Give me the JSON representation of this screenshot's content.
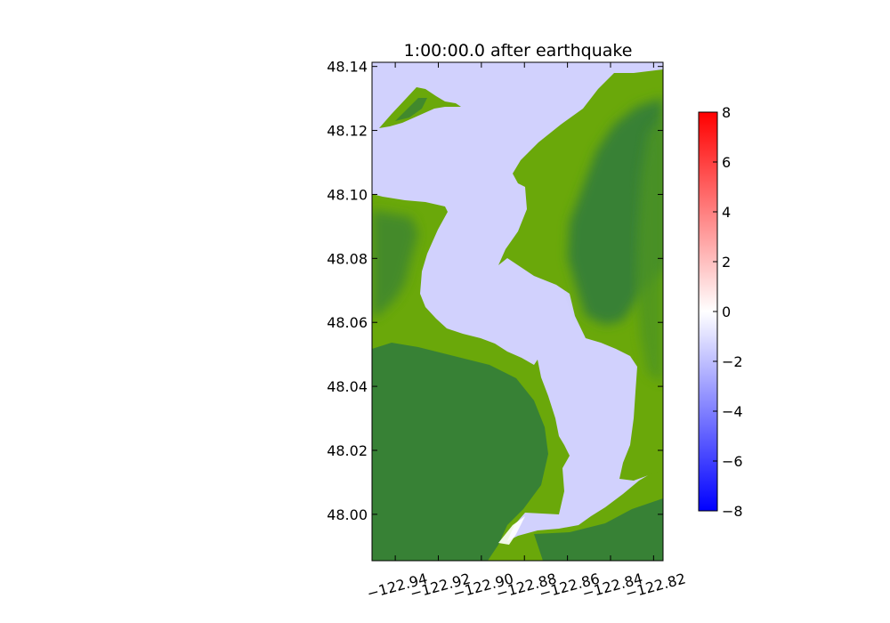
{
  "chart_data": {
    "type": "heatmap",
    "title": "1:00:00.0 after earthquake",
    "xlabel": "",
    "ylabel": "",
    "xlim": [
      -122.9508,
      -122.8156
    ],
    "ylim": [
      47.9855,
      48.1413
    ],
    "x_ticks": [
      -122.94,
      -122.92,
      -122.9,
      -122.88,
      -122.86,
      -122.84,
      -122.82
    ],
    "x_tick_labels": [
      "−122.94",
      "−122.92",
      "−122.90",
      "−122.88",
      "−122.86",
      "−122.84",
      "−122.82"
    ],
    "y_ticks": [
      48.0,
      48.02,
      48.04,
      48.06,
      48.08,
      48.1,
      48.12,
      48.14
    ],
    "y_tick_labels": [
      "48.00",
      "48.02",
      "48.04",
      "48.06",
      "48.08",
      "48.10",
      "48.12",
      "48.14"
    ],
    "grid": false,
    "field": "surface elevation",
    "water_value_approx": -1.5,
    "colorbar": {
      "vmin": -8,
      "vmax": 8,
      "ticks": [
        -8,
        -6,
        -4,
        -2,
        0,
        2,
        4,
        6,
        8
      ],
      "tick_labels": [
        "−8",
        "−6",
        "−4",
        "−2",
        "0",
        "2",
        "4",
        "6",
        "8"
      ],
      "colors": [
        "#0000ff",
        "#ffffff",
        "#ff0000"
      ],
      "placement": "right"
    },
    "land_colors": {
      "lowland": "#6aa80a",
      "highland": "#378135"
    },
    "water_color": "#d1d1fd"
  }
}
